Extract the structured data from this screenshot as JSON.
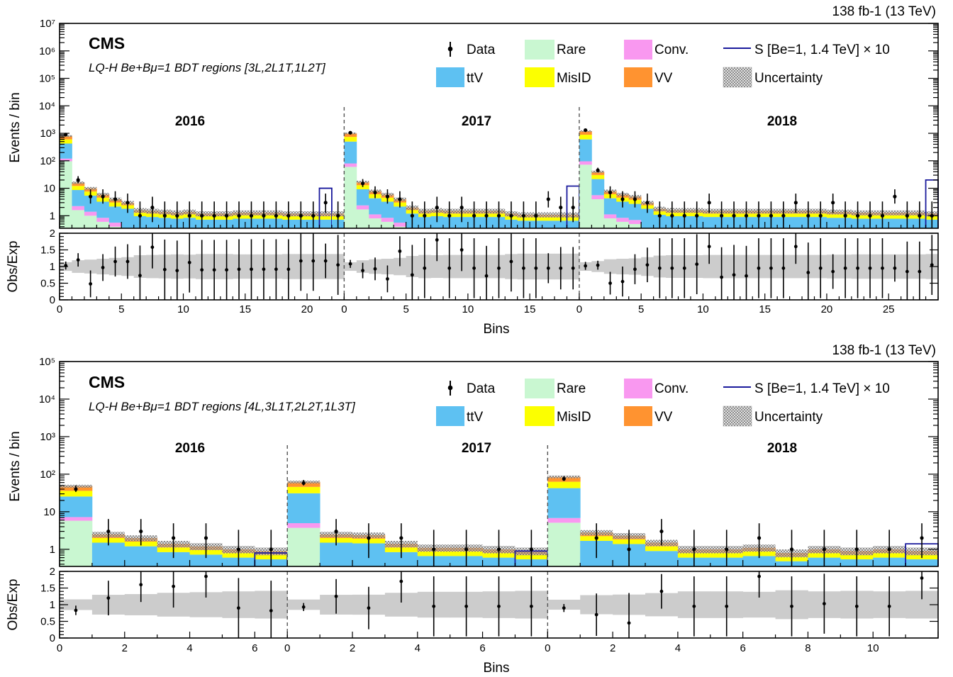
{
  "colors": {
    "rare": "#c9f7d1",
    "ttv": "#5ec1f2",
    "misid": "#fcff00",
    "conv": "#f998f0",
    "vv": "#ff9330",
    "signal": "#1a1a9c",
    "uncertainty": "#9a9a9a",
    "ratio_band": "#cccccc"
  },
  "chart_data": [
    {
      "type": "bar",
      "lumi": "138 fb-1 (13 TeV)",
      "experiment": "CMS",
      "subtitle": "LQ-H Be+Bμ=1 BDT regions [3L,2L1T,1L2T]",
      "ylabel": "Events / bin",
      "ratio_ylabel": "Obs/Exp",
      "xlabel": "Bins",
      "log_y": true,
      "ylim": [
        0.35,
        10000000
      ],
      "y_ticks": [
        "1",
        "10",
        "10²",
        "10³",
        "10⁴",
        "10⁵",
        "10⁶",
        "10⁷"
      ],
      "ratio_ylim": [
        0,
        2
      ],
      "ratio_ticks": [
        "0",
        "0.5",
        "1",
        "1.5",
        "2"
      ],
      "legend": {
        "data": "Data",
        "rare": "Rare",
        "conv": "Conv.",
        "signal": "S [Be=1, 1.4 TeV] × 10",
        "ttv": "ttV",
        "misid": "MisID",
        "vv": "VV",
        "uncertainty": "Uncertainty"
      },
      "x_tick_labels": [
        [
          "0",
          "5",
          "10",
          "15",
          "20"
        ],
        [
          "0",
          "5",
          "10",
          "15"
        ],
        [
          "0",
          "5",
          "10",
          "15",
          "20",
          "25"
        ]
      ],
      "years": [
        {
          "label": "2016",
          "totals": [
            800,
            16,
            10,
            6,
            4,
            3,
            1.6,
            1.5,
            1.4,
            1.3,
            1.4,
            1.2,
            1.2,
            1.2,
            1.3,
            1.3,
            1.3,
            1.3,
            1.2,
            1.2,
            1.2,
            1.2,
            1.2
          ],
          "data": [
            900,
            20,
            5,
            5,
            4,
            3,
            1,
            2,
            1,
            1,
            1,
            1,
            1,
            1,
            1,
            1,
            1,
            1,
            1,
            1,
            1,
            3,
            1
          ],
          "ratio": [
            1.03,
            1.2,
            0.48,
            0.97,
            1.15,
            1.15,
            0.73,
            1.58,
            0.91,
            0.88,
            1.12,
            0.9,
            0.9,
            0.9,
            0.92,
            0.92,
            0.92,
            0.92,
            0.92,
            1.17,
            1.17,
            1.17,
            1.05
          ],
          "signal": [
            0,
            0,
            0,
            0,
            0,
            0,
            0,
            0,
            0,
            0,
            0,
            0,
            0,
            0,
            0,
            0,
            0,
            0,
            0,
            0,
            0,
            10,
            0
          ]
        },
        {
          "label": "2017",
          "totals": [
            1000,
            17,
            8,
            6,
            4,
            2,
            1.5,
            1.6,
            1.5,
            1.5,
            1.5,
            1.5,
            1.5,
            1.2,
            1.1,
            1.1,
            1.1,
            1.1,
            1.1
          ],
          "data": [
            1050,
            15,
            7,
            5,
            4,
            1,
            1,
            2,
            1,
            2,
            1,
            1,
            1,
            1,
            1,
            1,
            4,
            2,
            2
          ],
          "ratio": [
            1.08,
            0.88,
            0.93,
            0.63,
            1.46,
            0.75,
            0.95,
            1.8,
            0.95,
            1.5,
            0.95,
            0.72,
            0.95,
            1.15,
            0.95,
            0.95,
            0.95,
            0.95,
            0.95
          ],
          "signal": [
            0,
            0,
            0,
            0,
            0,
            0,
            0,
            0,
            0,
            0,
            0,
            0,
            0,
            0,
            0,
            0,
            0,
            0,
            12
          ]
        },
        {
          "label": "2018",
          "totals": [
            1200,
            40,
            8,
            6,
            5,
            3,
            1.8,
            1.6,
            1.6,
            1.6,
            1.5,
            1.5,
            1.5,
            1.5,
            1.5,
            1.5,
            1.5,
            1.5,
            1.5,
            1.5,
            1.4,
            1.4,
            1.3,
            1.3,
            1.3,
            1.3,
            1.3,
            1.3,
            1.2
          ],
          "data": [
            1300,
            45,
            7,
            4,
            4,
            3,
            1,
            1,
            1,
            1,
            3,
            1,
            1,
            1,
            1,
            1,
            1,
            3,
            1,
            1,
            3,
            1,
            1,
            1,
            1,
            5,
            1,
            1,
            1
          ],
          "ratio": [
            1.02,
            1.04,
            0.5,
            0.55,
            0.92,
            1.05,
            0.95,
            0.95,
            0.95,
            1.07,
            1.6,
            0.68,
            0.75,
            0.72,
            0.95,
            0.95,
            0.95,
            1.6,
            0.82,
            0.95,
            0.85,
            0.95,
            0.95,
            0.95,
            0.95,
            0.95,
            0.85,
            0.85,
            1.05
          ],
          "signal": [
            0,
            0,
            0,
            0,
            0,
            0,
            0,
            0,
            0,
            0,
            0,
            0,
            0,
            0,
            0,
            0,
            0,
            0,
            0,
            0,
            0,
            0,
            0,
            0,
            0,
            0,
            0,
            0,
            20
          ]
        }
      ]
    },
    {
      "type": "bar",
      "lumi": "138 fb-1 (13 TeV)",
      "experiment": "CMS",
      "subtitle": "LQ-H Be+Bμ=1 BDT regions [4L,3L1T,2L2T,1L3T]",
      "ylabel": "Events / bin",
      "ratio_ylabel": "Obs/Exp",
      "xlabel": "Bins",
      "log_y": true,
      "ylim": [
        0.35,
        100000
      ],
      "y_ticks": [
        "1",
        "10",
        "10²",
        "10³",
        "10⁴",
        "10⁵"
      ],
      "ratio_ylim": [
        0,
        2
      ],
      "ratio_ticks": [
        "0",
        "0.5",
        "1",
        "1.5",
        "2"
      ],
      "legend": {
        "data": "Data",
        "rare": "Rare",
        "conv": "Conv.",
        "signal": "S [Be=1, 1.4 TeV] × 10",
        "ttv": "ttV",
        "misid": "MisID",
        "vv": "VV",
        "uncertainty": "Uncertainty"
      },
      "x_tick_labels": [
        [
          "0",
          "2",
          "4",
          "6"
        ],
        [
          "0",
          "2",
          "4",
          "6"
        ],
        [
          "0",
          "2",
          "4",
          "6",
          "8",
          "10"
        ]
      ],
      "years": [
        {
          "label": "2016",
          "totals": [
            48,
            2.5,
            2.0,
            1.4,
            1.2,
            1.0,
            0.9
          ],
          "data": [
            40,
            3,
            3,
            2,
            2,
            1,
            1
          ],
          "ratio": [
            0.83,
            1.2,
            1.6,
            1.55,
            1.85,
            0.9,
            0.82
          ],
          "signal": [
            0,
            0,
            0,
            0,
            0,
            0,
            0.8
          ]
        },
        {
          "label": "2017",
          "totals": [
            62,
            2.5,
            2.4,
            1.4,
            1.1,
            1.1,
            1.0,
            0.9
          ],
          "data": [
            58,
            3,
            2,
            2,
            1,
            1,
            1,
            1
          ],
          "ratio": [
            0.93,
            1.25,
            0.9,
            1.7,
            0.95,
            0.95,
            0.95,
            0.95
          ],
          "signal": [
            0,
            0,
            0,
            0,
            0,
            0,
            0,
            0.9
          ]
        },
        {
          "label": "2018",
          "totals": [
            85,
            2.8,
            2.3,
            1.5,
            1.0,
            1.0,
            1.1,
            0.8,
            1.0,
            0.9,
            1.0,
            0.9
          ],
          "data": [
            75,
            2,
            1,
            3,
            1,
            1,
            2,
            1,
            1,
            1,
            1,
            2
          ],
          "ratio": [
            0.9,
            0.7,
            0.45,
            1.4,
            0.95,
            0.95,
            1.85,
            0.95,
            1.03,
            0.95,
            0.95,
            1.8
          ],
          "signal": [
            0,
            0,
            0,
            0,
            0,
            0,
            0,
            0,
            0,
            0,
            0,
            1.4
          ]
        }
      ]
    }
  ]
}
